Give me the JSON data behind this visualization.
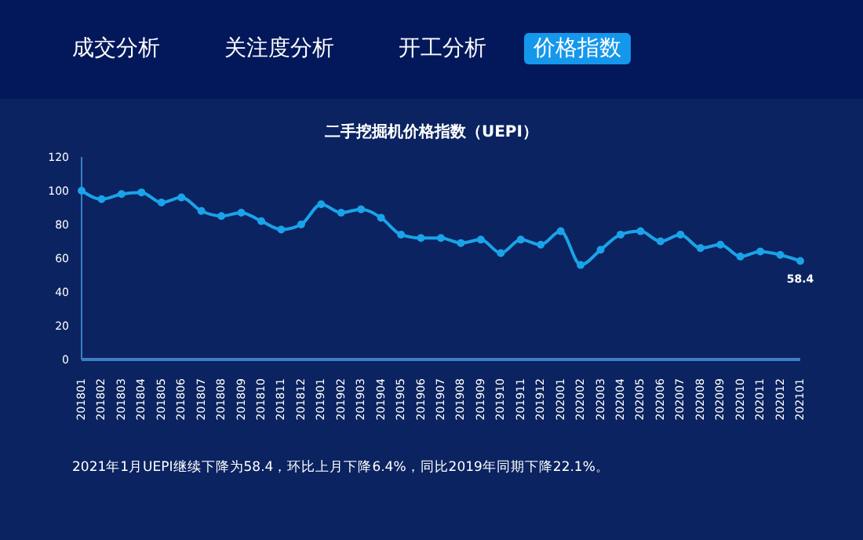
{
  "chart_data": {
    "type": "line",
    "title": "二手挖掘机价格指数（UEPI）",
    "annotations": [
      "成交分析",
      "关注度分析",
      "开工分析",
      "价格指数",
      "2021年1月UEPI继续下降为58.4，环比上月下降6.4%，同比2019年同期下降22.1%。"
    ],
    "categories": [
      "201801",
      "201802",
      "201803",
      "201804",
      "201805",
      "201806",
      "201807",
      "201808",
      "201809",
      "201810",
      "201811",
      "201812",
      "201901",
      "201902",
      "201903",
      "201904",
      "201905",
      "201906",
      "201907",
      "201908",
      "201909",
      "201910",
      "201911",
      "201912",
      "202001",
      "202002",
      "202003",
      "202004",
      "202005",
      "202006",
      "202007",
      "202008",
      "202009",
      "202010",
      "202011",
      "202012",
      "202101"
    ],
    "series": [
      {
        "color": "#1aa3e8",
        "values": [
          100,
          95,
          98,
          99,
          93,
          96,
          88,
          85,
          87,
          82,
          77,
          80,
          92,
          87,
          89,
          84,
          74,
          72,
          72,
          69,
          71,
          63,
          71,
          68,
          76,
          56,
          65,
          74,
          76,
          70,
          74,
          66,
          68,
          61,
          64,
          62,
          58.4
        ],
        "value_labels": [
          null,
          null,
          null,
          null,
          null,
          null,
          null,
          null,
          null,
          null,
          null,
          null,
          null,
          null,
          null,
          null,
          null,
          null,
          null,
          null,
          null,
          null,
          null,
          null,
          null,
          null,
          null,
          null,
          null,
          null,
          null,
          null,
          null,
          null,
          null,
          null,
          "58.4"
        ]
      }
    ],
    "ylim": [
      0,
      120
    ],
    "yticks": [
      0,
      20,
      40,
      60,
      80,
      100,
      120
    ],
    "grid": false,
    "legend": false,
    "marker": "circle",
    "line_style": "solid"
  }
}
